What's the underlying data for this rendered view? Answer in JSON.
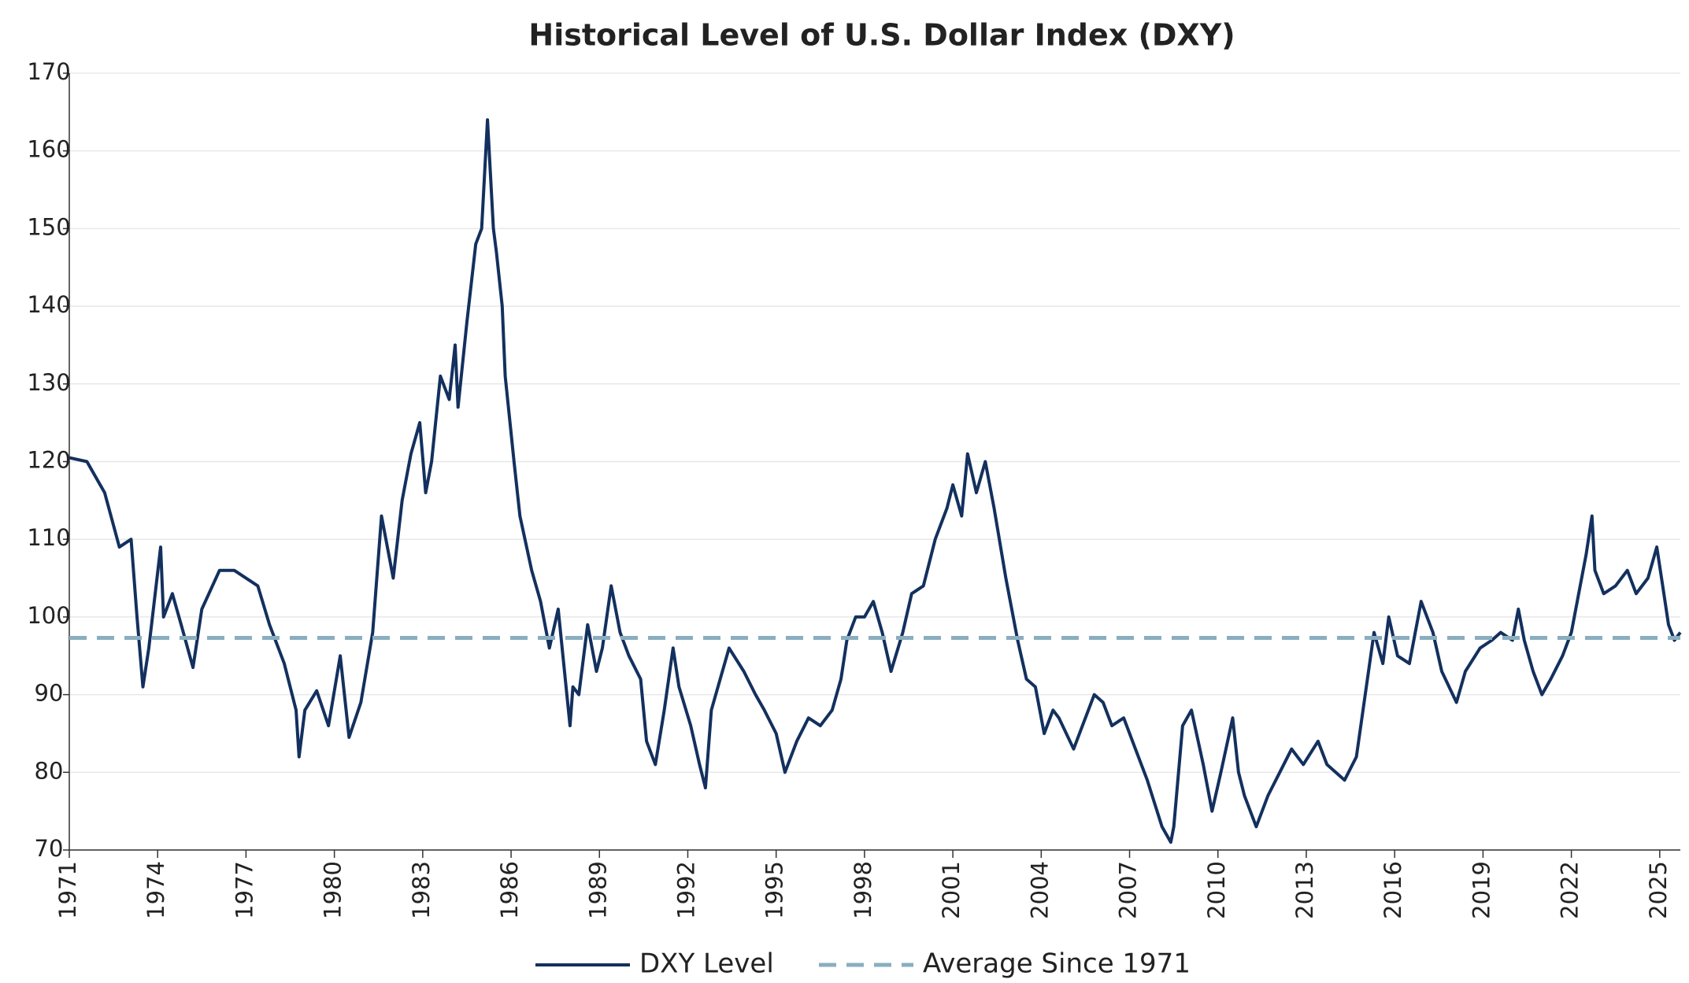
{
  "chart_data": {
    "type": "line",
    "title": "Historical Level of U.S. Dollar Index (DXY)",
    "xlim": [
      1971,
      2025.7
    ],
    "xticks": [
      1971,
      1974,
      1977,
      1980,
      1983,
      1986,
      1989,
      1992,
      1995,
      1998,
      2001,
      2004,
      2007,
      2010,
      2013,
      2016,
      2019,
      2022,
      2025
    ],
    "ylim": [
      70,
      170
    ],
    "yticks": [
      70,
      80,
      90,
      100,
      110,
      120,
      130,
      140,
      150,
      160,
      170
    ],
    "grid": true,
    "legend": "bottom",
    "series": [
      {
        "name": "DXY Level",
        "color": "#13305e",
        "dashed": false,
        "x": [
          1971.0,
          1971.6,
          1972.2,
          1972.7,
          1973.1,
          1973.3,
          1973.5,
          1973.7,
          1974.1,
          1974.2,
          1974.5,
          1974.8,
          1975.2,
          1975.5,
          1976.1,
          1976.6,
          1977.4,
          1977.8,
          1978.3,
          1978.7,
          1978.8,
          1979.0,
          1979.4,
          1979.8,
          1980.2,
          1980.5,
          1980.9,
          1981.3,
          1981.6,
          1982.0,
          1982.3,
          1982.6,
          1982.9,
          1983.1,
          1983.3,
          1983.6,
          1983.9,
          1984.1,
          1984.2,
          1984.5,
          1984.8,
          1985.0,
          1985.2,
          1985.4,
          1985.5,
          1985.7,
          1985.8,
          1986.1,
          1986.3,
          1986.7,
          1987.0,
          1987.3,
          1987.6,
          1988.0,
          1988.1,
          1988.3,
          1988.6,
          1988.9,
          1989.1,
          1989.4,
          1989.7,
          1990.0,
          1990.4,
          1990.6,
          1990.9,
          1991.2,
          1991.5,
          1991.7,
          1992.1,
          1992.4,
          1992.6,
          1992.8,
          1993.1,
          1993.4,
          1993.9,
          1994.3,
          1994.6,
          1995.0,
          1995.3,
          1995.7,
          1996.1,
          1996.5,
          1996.9,
          1997.2,
          1997.4,
          1997.7,
          1998.0,
          1998.3,
          1998.6,
          1998.9,
          1999.3,
          1999.6,
          2000.0,
          2000.4,
          2000.8,
          2001.0,
          2001.3,
          2001.5,
          2001.8,
          2002.1,
          2002.4,
          2002.8,
          2003.2,
          2003.5,
          2003.8,
          2004.1,
          2004.4,
          2004.6,
          2005.1,
          2005.4,
          2005.8,
          2006.1,
          2006.4,
          2006.8,
          2007.2,
          2007.6,
          2008.1,
          2008.4,
          2008.5,
          2008.8,
          2009.1,
          2009.5,
          2009.8,
          2010.1,
          2010.5,
          2010.7,
          2010.9,
          2011.3,
          2011.7,
          2012.1,
          2012.5,
          2012.9,
          2013.4,
          2013.7,
          2014.3,
          2014.7,
          2015.0,
          2015.3,
          2015.6,
          2015.8,
          2016.1,
          2016.5,
          2016.9,
          2017.3,
          2017.6,
          2018.1,
          2018.4,
          2018.9,
          2019.3,
          2019.6,
          2020.0,
          2020.2,
          2020.4,
          2020.7,
          2021.0,
          2021.3,
          2021.7,
          2022.0,
          2022.3,
          2022.5,
          2022.7,
          2022.8,
          2023.1,
          2023.5,
          2023.9,
          2024.2,
          2024.6,
          2024.9,
          2025.1,
          2025.3,
          2025.5,
          2025.7
        ],
        "values": [
          120.5,
          120,
          116,
          109,
          110,
          100,
          91,
          96,
          109,
          100,
          103,
          99,
          93.5,
          101,
          106,
          106,
          104,
          99,
          94,
          88,
          82,
          88,
          90.5,
          86,
          95,
          84.5,
          89,
          98,
          113,
          105,
          115,
          121,
          125,
          116,
          120,
          131,
          128,
          135,
          127,
          138,
          148,
          150,
          164,
          150,
          147,
          140,
          131,
          120,
          113,
          106,
          102,
          96,
          101,
          86,
          91,
          90,
          99,
          93,
          96,
          104,
          98,
          95,
          92,
          84,
          81,
          88,
          96,
          91,
          86,
          81,
          78,
          88,
          92,
          96,
          93,
          90,
          88,
          85,
          80,
          84,
          87,
          86,
          88,
          92,
          97,
          100,
          100,
          102,
          98,
          93,
          98,
          103,
          104,
          110,
          114,
          117,
          113,
          121,
          116,
          120,
          114,
          105,
          97,
          92,
          91,
          85,
          88,
          87,
          83,
          86,
          90,
          89,
          86,
          87,
          83,
          79,
          73,
          71,
          73,
          86,
          88,
          81,
          75,
          80,
          87,
          80,
          77,
          73,
          77,
          80,
          83,
          81,
          84,
          81,
          79,
          82,
          90,
          98,
          94,
          100,
          95,
          94,
          102,
          98,
          93,
          89,
          93,
          96,
          97,
          98,
          97,
          101,
          97,
          93,
          90,
          92,
          95,
          98,
          104,
          108,
          113,
          106,
          103,
          104,
          106,
          103,
          105,
          109,
          104,
          99,
          97,
          98
        ]
      },
      {
        "name": "Average Since 1971",
        "color": "#8aaebf",
        "dashed": true,
        "x": [
          1971,
          2025.7
        ],
        "values": [
          97.3,
          97.3
        ]
      }
    ]
  }
}
